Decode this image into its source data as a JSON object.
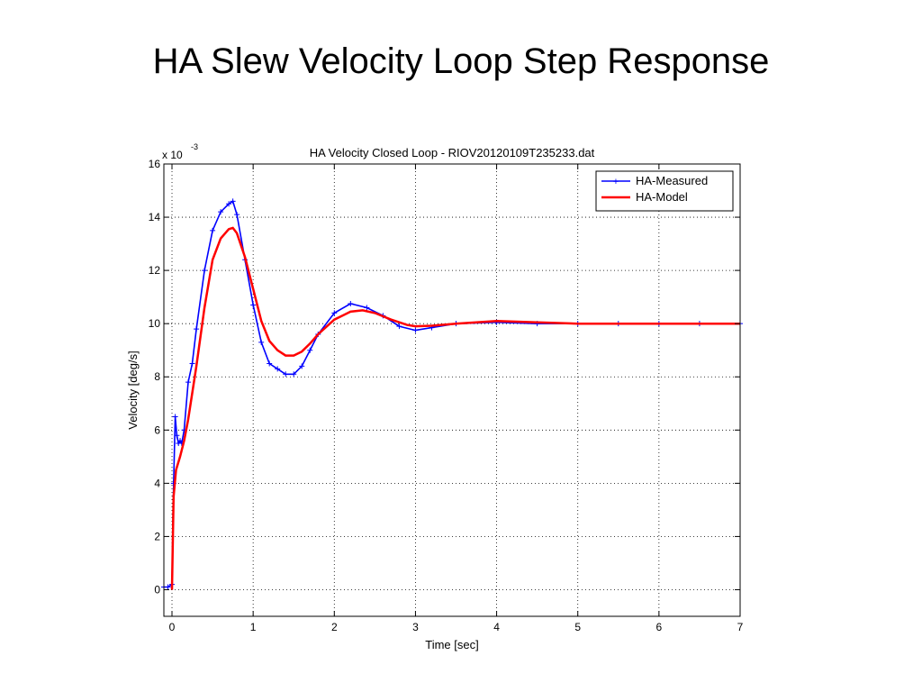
{
  "slide": {
    "title": "HA Slew Velocity Loop Step Response"
  },
  "chart_data": {
    "type": "line",
    "title": "HA Velocity Closed Loop - RIOV20120109T235233.dat",
    "xlabel": "Time [sec]",
    "ylabel": "Velocity [deg/s]",
    "y_multiplier": "x 10",
    "y_exponent": "-3",
    "xlim": [
      -0.1,
      7
    ],
    "ylim": [
      -1,
      16
    ],
    "x_ticks": [
      0,
      1,
      2,
      3,
      4,
      5,
      6,
      7
    ],
    "y_ticks": [
      0,
      2,
      4,
      6,
      8,
      10,
      12,
      14,
      16
    ],
    "x_tick_labels": [
      "0",
      "1",
      "2",
      "3",
      "4",
      "5",
      "6",
      "7"
    ],
    "y_tick_labels": [
      "0",
      "2",
      "4",
      "6",
      "8",
      "10",
      "12",
      "14",
      "16"
    ],
    "grid": true,
    "legend_position": "top-right",
    "series": [
      {
        "name": "HA-Measured",
        "color": "#0000ff",
        "marker": "plus",
        "x": [
          -0.1,
          -0.05,
          0,
          0.02,
          0.04,
          0.06,
          0.08,
          0.1,
          0.12,
          0.15,
          0.2,
          0.25,
          0.3,
          0.4,
          0.5,
          0.6,
          0.7,
          0.75,
          0.8,
          0.9,
          1.0,
          1.1,
          1.2,
          1.3,
          1.4,
          1.5,
          1.6,
          1.7,
          1.8,
          2.0,
          2.2,
          2.4,
          2.6,
          2.8,
          3.0,
          3.2,
          3.5,
          4.0,
          4.5,
          5.0,
          5.5,
          6.0,
          6.5,
          7.0
        ],
        "y": [
          0.1,
          0.1,
          0.2,
          4.0,
          6.5,
          5.8,
          5.5,
          5.6,
          5.5,
          6.0,
          7.8,
          8.5,
          9.8,
          12.0,
          13.5,
          14.2,
          14.5,
          14.6,
          14.1,
          12.4,
          10.7,
          9.3,
          8.5,
          8.3,
          8.1,
          8.1,
          8.4,
          9.0,
          9.6,
          10.4,
          10.75,
          10.6,
          10.3,
          9.9,
          9.75,
          9.85,
          10.0,
          10.05,
          10.0,
          10.0,
          10.0,
          10.0,
          10.0,
          10.0
        ]
      },
      {
        "name": "HA-Model",
        "color": "#ff0000",
        "x": [
          0,
          0.02,
          0.05,
          0.1,
          0.15,
          0.2,
          0.3,
          0.4,
          0.5,
          0.6,
          0.7,
          0.75,
          0.8,
          0.9,
          1.0,
          1.1,
          1.2,
          1.3,
          1.4,
          1.5,
          1.6,
          1.7,
          1.8,
          2.0,
          2.2,
          2.35,
          2.5,
          2.7,
          2.9,
          3.0,
          3.2,
          3.5,
          4.0,
          4.5,
          5.0,
          5.5,
          6.0,
          6.5,
          7.0
        ],
        "y": [
          0,
          3.5,
          4.5,
          5.0,
          5.6,
          6.4,
          8.4,
          10.6,
          12.4,
          13.2,
          13.55,
          13.6,
          13.4,
          12.5,
          11.3,
          10.1,
          9.35,
          9.0,
          8.8,
          8.8,
          8.95,
          9.25,
          9.6,
          10.15,
          10.45,
          10.5,
          10.4,
          10.15,
          9.95,
          9.9,
          9.92,
          10.0,
          10.1,
          10.05,
          10.0,
          10.0,
          10.0,
          10.0,
          10.0
        ]
      }
    ]
  }
}
